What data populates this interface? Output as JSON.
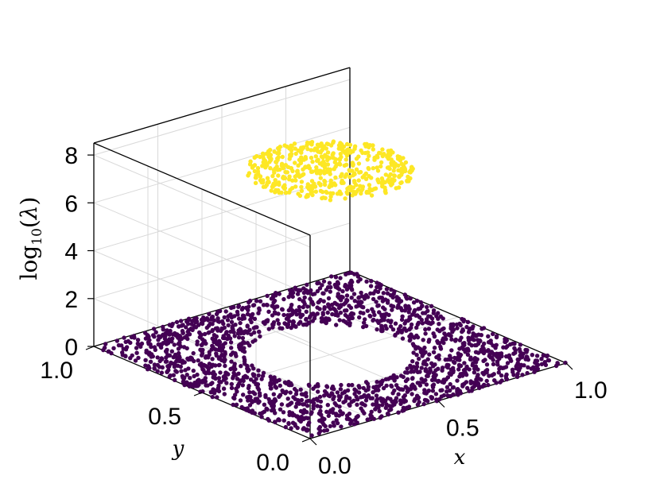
{
  "chart_data": {
    "type": "scatter",
    "projection": "3d",
    "title": "",
    "xlabel": "x",
    "ylabel": "y",
    "zlabel": {
      "base": "log",
      "subscript": "10",
      "argument": "λ"
    },
    "xlim": [
      0,
      1
    ],
    "ylim": [
      0,
      1
    ],
    "zlim": [
      0,
      8.5
    ],
    "x_ticks": [
      "0.0",
      "0.5",
      "1.0"
    ],
    "y_ticks": [
      "0.0",
      "0.5",
      "1.0"
    ],
    "z_ticks": [
      "0",
      "2",
      "4",
      "6",
      "8"
    ],
    "grid": true,
    "legend": "none",
    "series": [
      {
        "description_of_distribution": "uniform points over the unit square excluding a disk of radius 0.25 centered at (0.5, 0.5)",
        "z_value": 0,
        "color": "#440154"
      },
      {
        "description_of_distribution": "uniform points inside the disk of radius 0.25 centered at (0.5, 0.5)",
        "z_value": 7.7,
        "color": "#fde725"
      }
    ]
  }
}
